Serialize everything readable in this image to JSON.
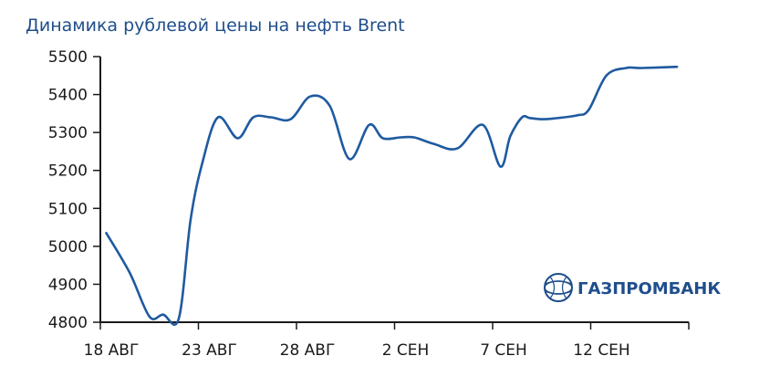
{
  "chart_data": {
    "type": "line",
    "title": "Динамика рублевой цены на нефть Brent",
    "xlabel": "",
    "ylabel": "",
    "ylim": [
      4800,
      5500
    ],
    "yticks": [
      4800,
      4900,
      5000,
      5100,
      5200,
      5300,
      5400,
      5500
    ],
    "x_tick_labels": [
      "18 АВГ",
      "23 АВГ",
      "28 АВГ",
      "2 СЕН",
      "7 СЕН",
      "12 СЕН"
    ],
    "x_tick_days": [
      0,
      5,
      10,
      15,
      20,
      25
    ],
    "xlim_days": [
      0,
      30
    ],
    "grid": false,
    "legend": "none",
    "line_color": "#1f5aa0",
    "series": [
      {
        "x_days": [
          0.3,
          1.5,
          2.5,
          3.2,
          4.0,
          4.6,
          5.2,
          6.0,
          7.0,
          7.8,
          8.7,
          9.7,
          10.7,
          11.7,
          12.7,
          13.7,
          14.4,
          15.3,
          16.0,
          17.0,
          18.2,
          19.5,
          20.4,
          20.9,
          21.5,
          21.9,
          22.5,
          23.1,
          24.3,
          24.9,
          25.8,
          26.8,
          27.6,
          29.4
        ],
        "values": [
          5035,
          4930,
          4815,
          4820,
          4810,
          5070,
          5220,
          5340,
          5285,
          5340,
          5340,
          5335,
          5395,
          5370,
          5230,
          5320,
          5285,
          5287,
          5287,
          5270,
          5258,
          5320,
          5210,
          5290,
          5340,
          5338,
          5335,
          5337,
          5345,
          5360,
          5450,
          5470,
          5470,
          5473
        ]
      }
    ]
  },
  "logo": {
    "text": "ГАЗПРОМБАНК",
    "color": "#1f4e8c"
  }
}
